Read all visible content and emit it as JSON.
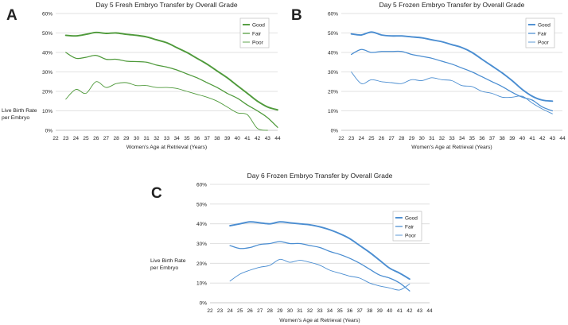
{
  "colors": {
    "green": "#4f9a3b",
    "blue": "#4a8dd1"
  },
  "chart_data": [
    {
      "panel_label": "A",
      "type": "line",
      "title": "Day 5 Fresh Embryo Transfer by Overall Grade",
      "xlabel": "Women's Age at Retrieval (Years)",
      "ylabel": "Live Birth Rate per Embryo",
      "x_ticks": [
        "22",
        "23",
        "24",
        "25",
        "26",
        "27",
        "28",
        "29",
        "30",
        "31",
        "32",
        "33",
        "34",
        "35",
        "36",
        "37",
        "38",
        "39",
        "40",
        "41",
        "42",
        "43",
        "44"
      ],
      "y_ticks": [
        "0%",
        "10%",
        "20%",
        "30%",
        "40%",
        "50%",
        "60%"
      ],
      "xlim": [
        22,
        44
      ],
      "ylim": [
        0,
        60
      ],
      "grid": "horizontal",
      "legend": "top-right",
      "color": "green",
      "series": [
        {
          "name": "Good",
          "x": [
            23,
            24,
            25,
            26,
            27,
            28,
            29,
            30,
            31,
            32,
            33,
            34,
            35,
            36,
            37,
            38,
            39,
            40,
            41,
            42,
            43,
            44
          ],
          "values": [
            48.8,
            48.5,
            49.3,
            50.3,
            49.8,
            50.0,
            49.3,
            48.8,
            48.0,
            46.5,
            45.0,
            42.5,
            40.0,
            37.0,
            34.0,
            30.5,
            27.0,
            23.0,
            19.0,
            15.0,
            12.0,
            10.5
          ]
        },
        {
          "name": "Fair",
          "x": [
            23,
            24,
            25,
            26,
            27,
            28,
            29,
            30,
            31,
            32,
            33,
            34,
            35,
            36,
            37,
            38,
            39,
            40,
            41,
            42,
            43,
            44
          ],
          "values": [
            40.0,
            37.0,
            37.5,
            38.5,
            36.5,
            36.5,
            35.5,
            35.3,
            35.0,
            33.5,
            32.5,
            31.0,
            29.0,
            27.0,
            24.5,
            22.0,
            19.0,
            16.5,
            13.0,
            10.0,
            6.5,
            1.5
          ]
        },
        {
          "name": "Poor",
          "x": [
            23,
            24,
            25,
            26,
            27,
            28,
            29,
            30,
            31,
            32,
            33,
            34,
            35,
            36,
            37,
            38,
            39,
            40,
            41,
            42,
            43
          ],
          "values": [
            16.0,
            21.0,
            19.0,
            25.0,
            22.0,
            24.0,
            24.5,
            23.0,
            23.0,
            22.0,
            22.0,
            21.5,
            20.0,
            18.5,
            17.0,
            15.0,
            12.0,
            9.0,
            8.0,
            1.0,
            0.0
          ]
        }
      ]
    },
    {
      "panel_label": "B",
      "type": "line",
      "title": "Day 5 Frozen Embryo Transfer by Overall Grade",
      "xlabel": "Women's Age at Retrieval (Years)",
      "ylabel": "",
      "x_ticks": [
        "22",
        "23",
        "24",
        "25",
        "26",
        "27",
        "28",
        "29",
        "30",
        "31",
        "32",
        "33",
        "34",
        "35",
        "36",
        "37",
        "38",
        "39",
        "40",
        "41",
        "42",
        "43",
        "44"
      ],
      "y_ticks": [
        "0%",
        "10%",
        "20%",
        "30%",
        "40%",
        "50%",
        "60%"
      ],
      "xlim": [
        22,
        44
      ],
      "ylim": [
        0,
        60
      ],
      "grid": "horizontal",
      "legend": "top-right",
      "color": "blue",
      "series": [
        {
          "name": "Good",
          "x": [
            23,
            24,
            25,
            26,
            27,
            28,
            29,
            30,
            31,
            32,
            33,
            34,
            35,
            36,
            37,
            38,
            39,
            40,
            41,
            42,
            43
          ],
          "values": [
            49.5,
            49.0,
            50.5,
            49.0,
            48.5,
            48.5,
            48.0,
            47.5,
            46.5,
            45.5,
            44.0,
            42.5,
            40.0,
            36.5,
            33.0,
            29.5,
            25.5,
            21.0,
            17.5,
            15.5,
            15.0
          ]
        },
        {
          "name": "Fair",
          "x": [
            23,
            24,
            25,
            26,
            27,
            28,
            29,
            30,
            31,
            32,
            33,
            34,
            35,
            36,
            37,
            38,
            39,
            40,
            41,
            42,
            43
          ],
          "values": [
            39.0,
            41.5,
            40.0,
            40.5,
            40.5,
            40.5,
            39.0,
            38.0,
            37.0,
            35.5,
            34.0,
            32.0,
            30.0,
            27.5,
            25.0,
            22.5,
            19.5,
            17.0,
            15.5,
            12.0,
            10.0
          ]
        },
        {
          "name": "Poor",
          "x": [
            23,
            24,
            25,
            26,
            27,
            28,
            29,
            30,
            31,
            32,
            33,
            34,
            35,
            36,
            37,
            38,
            39,
            40,
            41,
            42,
            43
          ],
          "values": [
            30.0,
            24.0,
            26.0,
            25.0,
            24.5,
            24.0,
            26.0,
            25.5,
            27.0,
            26.0,
            25.5,
            23.0,
            22.5,
            20.0,
            19.0,
            17.0,
            17.0,
            17.5,
            14.0,
            11.0,
            8.5
          ]
        }
      ]
    },
    {
      "panel_label": "C",
      "type": "line",
      "title": "Day 6 Frozen Embryo Transfer by Overall Grade",
      "xlabel": "Women's Age at Retrieval (Years)",
      "ylabel": "Live Birth Rate per Embryo",
      "x_ticks": [
        "22",
        "23",
        "24",
        "25",
        "26",
        "27",
        "28",
        "29",
        "30",
        "31",
        "32",
        "33",
        "34",
        "35",
        "36",
        "37",
        "38",
        "39",
        "40",
        "41",
        "42",
        "43",
        "44"
      ],
      "y_ticks": [
        "0%",
        "10%",
        "20%",
        "30%",
        "40%",
        "50%",
        "60%"
      ],
      "xlim": [
        22,
        44
      ],
      "ylim": [
        0,
        60
      ],
      "grid": "horizontal",
      "legend": "top-right",
      "color": "blue",
      "series": [
        {
          "name": "Good",
          "x": [
            24,
            25,
            26,
            27,
            28,
            29,
            30,
            31,
            32,
            33,
            34,
            35,
            36,
            37,
            38,
            39,
            40,
            41,
            42
          ],
          "values": [
            39.0,
            40.0,
            41.0,
            40.5,
            40.0,
            41.0,
            40.5,
            40.0,
            39.5,
            38.5,
            37.0,
            35.0,
            32.5,
            29.0,
            25.5,
            21.5,
            17.5,
            15.0,
            12.0
          ]
        },
        {
          "name": "Fair",
          "x": [
            24,
            25,
            26,
            27,
            28,
            29,
            30,
            31,
            32,
            33,
            34,
            35,
            36,
            37,
            38,
            39,
            40,
            41,
            42
          ],
          "values": [
            29.0,
            27.5,
            28.0,
            29.5,
            30.0,
            31.0,
            30.0,
            30.0,
            29.0,
            28.0,
            26.0,
            24.5,
            22.5,
            20.0,
            17.0,
            14.0,
            12.5,
            10.0,
            6.0
          ]
        },
        {
          "name": "Poor",
          "x": [
            24,
            25,
            26,
            27,
            28,
            29,
            30,
            31,
            32,
            33,
            34,
            35,
            36,
            37,
            38,
            39,
            40,
            41,
            42
          ],
          "values": [
            11.0,
            14.5,
            16.5,
            18.0,
            19.0,
            22.0,
            20.5,
            21.5,
            20.5,
            19.0,
            16.5,
            15.0,
            13.5,
            12.5,
            10.0,
            8.5,
            7.5,
            6.5,
            9.5
          ]
        }
      ]
    }
  ]
}
